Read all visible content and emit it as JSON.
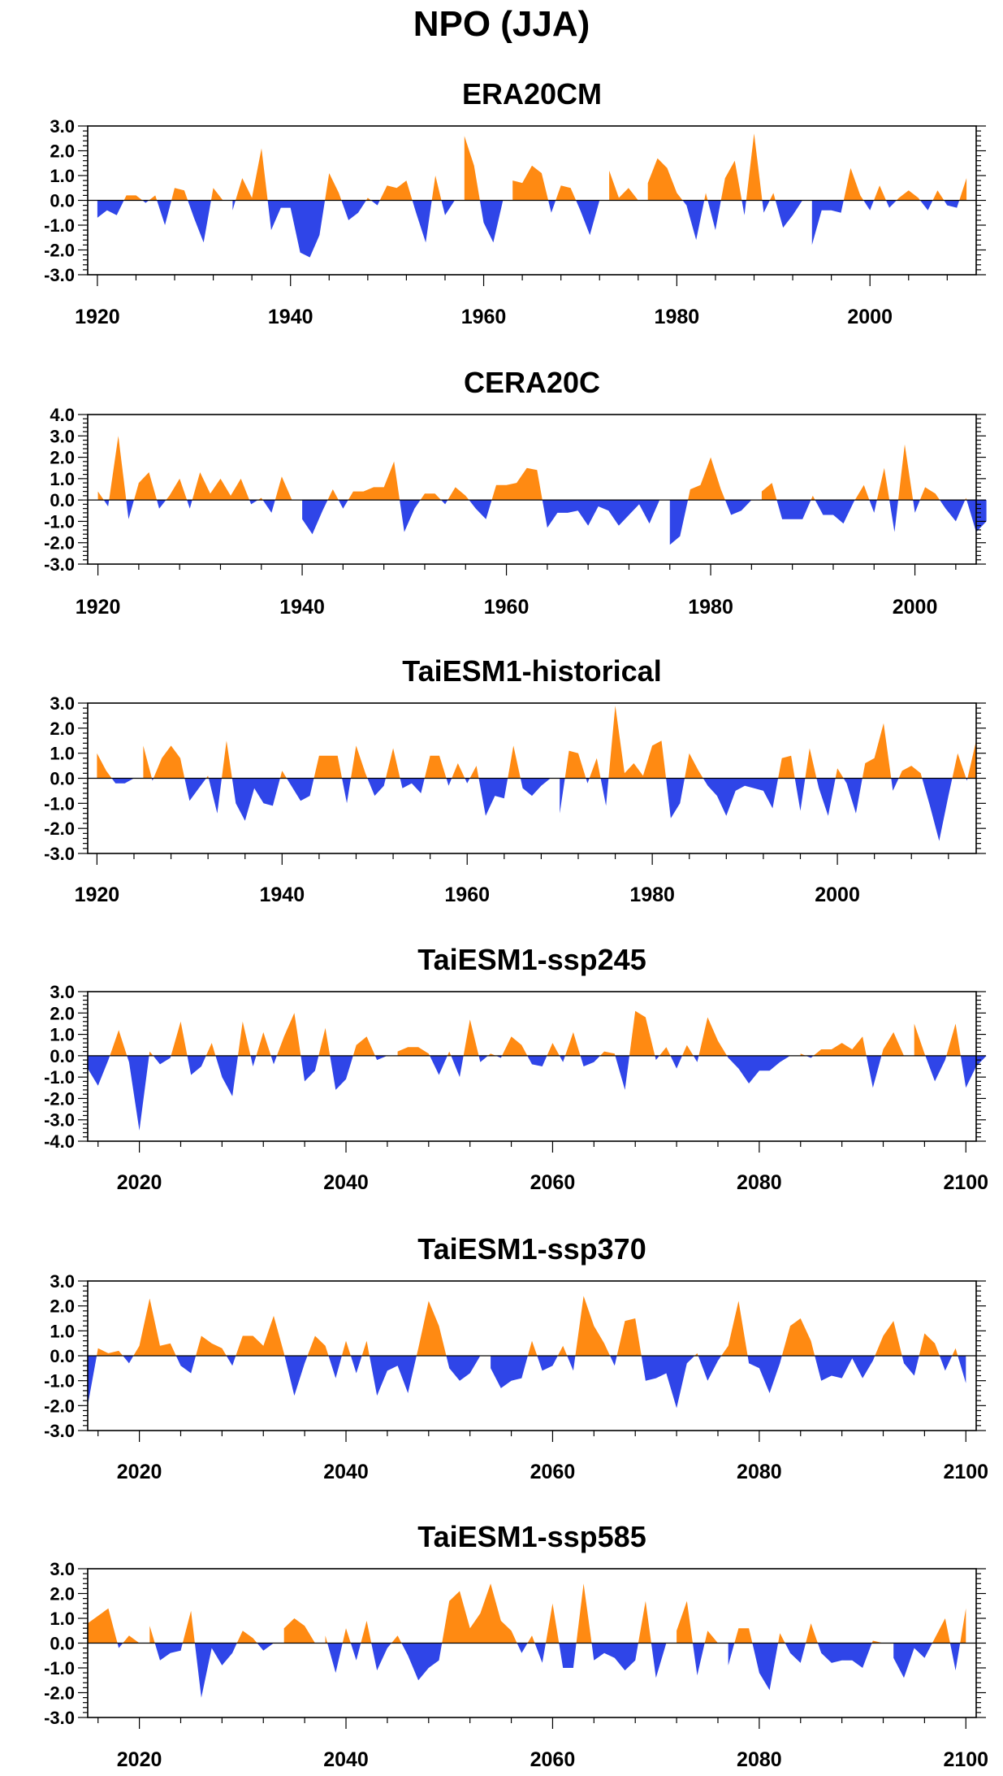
{
  "figure": {
    "title": "NPO (JJA)"
  },
  "colors": {
    "positive": "#ff8a12",
    "negative": "#2f45e8",
    "axis": "#000000"
  },
  "chart_data": [
    {
      "type": "area",
      "title": "ERA20CM",
      "x_start": 1920,
      "xlim": [
        1919,
        2011
      ],
      "ylim": [
        -3.0,
        3.0
      ],
      "yticks": [
        3.0,
        2.0,
        1.0,
        0.0,
        -1.0,
        -2.0,
        -3.0
      ],
      "ytick_labels": [
        "3.0",
        "2.0",
        "1.0",
        "0.0",
        "-1.0",
        "-2.0",
        "-3.0"
      ],
      "xticks": [
        1920,
        1940,
        1960,
        1980,
        2000
      ],
      "xtick_labels": [
        "1920",
        "1940",
        "1960",
        "1980",
        "2000"
      ],
      "values": [
        -0.7,
        -0.4,
        -0.6,
        0.2,
        0.2,
        -0.1,
        0.2,
        -1.0,
        0.5,
        0.4,
        -0.7,
        -1.7,
        0.5,
        0.0,
        -0.4,
        0.9,
        0.1,
        2.1,
        -1.2,
        -0.3,
        -0.3,
        -2.1,
        -2.3,
        -1.4,
        1.1,
        0.3,
        -0.8,
        -0.5,
        0.1,
        -0.2,
        0.6,
        0.5,
        0.8,
        -0.5,
        -1.7,
        1.0,
        -0.6,
        0.0,
        2.6,
        1.4,
        -0.9,
        -1.7,
        0.0,
        0.8,
        0.7,
        1.4,
        1.1,
        -0.5,
        0.6,
        0.5,
        -0.4,
        -1.4,
        0.0,
        1.2,
        0.1,
        0.5,
        0.0,
        0.7,
        1.7,
        1.3,
        0.3,
        -0.2,
        -1.6,
        0.3,
        -1.2,
        0.9,
        1.6,
        -0.6,
        2.7,
        -0.5,
        0.3,
        -1.1,
        -0.6,
        0.0,
        -1.8,
        -0.4,
        -0.4,
        -0.5,
        1.3,
        0.2,
        -0.4,
        0.6,
        -0.3,
        0.1,
        0.4,
        0.1,
        -0.4,
        0.4,
        -0.2,
        -0.3,
        0.9
      ]
    },
    {
      "type": "area",
      "title": "CERA20C",
      "x_start": 1920,
      "xlim": [
        1919,
        2006
      ],
      "ylim": [
        -3.0,
        4.0
      ],
      "yticks": [
        4.0,
        3.0,
        2.0,
        1.0,
        0.0,
        -1.0,
        -2.0,
        -3.0
      ],
      "ytick_labels": [
        "4.0",
        "3.0",
        "2.0",
        "1.0",
        "0.0",
        "-1.0",
        "-2.0",
        "-3.0"
      ],
      "xticks": [
        1920,
        1940,
        1960,
        1980,
        2000
      ],
      "xtick_labels": [
        "1920",
        "1940",
        "1960",
        "1980",
        "2000"
      ],
      "values": [
        0.4,
        -0.3,
        3.0,
        -0.9,
        0.8,
        1.3,
        -0.4,
        0.2,
        1.0,
        -0.4,
        1.3,
        0.3,
        1.0,
        0.2,
        1.0,
        -0.2,
        0.1,
        -0.6,
        1.1,
        0.0,
        -0.9,
        -1.6,
        -0.5,
        0.5,
        -0.4,
        0.4,
        0.4,
        0.6,
        0.6,
        1.8,
        -1.5,
        -0.4,
        0.3,
        0.3,
        -0.2,
        0.6,
        0.2,
        -0.4,
        -0.9,
        0.7,
        0.7,
        0.8,
        1.5,
        1.4,
        -1.3,
        -0.6,
        -0.6,
        -0.5,
        -1.2,
        -0.3,
        -0.5,
        -1.2,
        -0.7,
        -0.2,
        -1.1,
        0.0,
        -2.1,
        -1.7,
        0.5,
        0.7,
        2.0,
        0.5,
        -0.7,
        -0.5,
        0.0,
        0.4,
        0.8,
        -0.9,
        -0.9,
        -0.9,
        0.2,
        -0.7,
        -0.7,
        -1.1,
        -0.1,
        0.7,
        -0.6,
        1.5,
        -1.5,
        2.6,
        -0.6,
        0.6,
        0.3,
        -0.4,
        -1.0,
        0.1,
        -1.5,
        -1.0
      ]
    },
    {
      "type": "area",
      "title": "TaiESM1-historical",
      "x_start": 1920,
      "xlim": [
        1919,
        2015
      ],
      "ylim": [
        -3.0,
        3.0
      ],
      "yticks": [
        3.0,
        2.0,
        1.0,
        0.0,
        -1.0,
        -2.0,
        -3.0
      ],
      "ytick_labels": [
        "3.0",
        "2.0",
        "1.0",
        "0.0",
        "-1.0",
        "-2.0",
        "-3.0"
      ],
      "xticks": [
        1920,
        1940,
        1960,
        1980,
        2000
      ],
      "xtick_labels": [
        "1920",
        "1940",
        "1960",
        "1980",
        "2000"
      ],
      "values": [
        1.0,
        0.3,
        -0.2,
        -0.2,
        0.0,
        1.3,
        -0.1,
        0.8,
        1.3,
        0.8,
        -0.9,
        -0.4,
        0.1,
        -1.4,
        1.5,
        -1.0,
        -1.7,
        -0.4,
        -1.0,
        -1.1,
        0.3,
        -0.3,
        -0.9,
        -0.7,
        0.9,
        0.9,
        0.9,
        -1.0,
        1.3,
        0.2,
        -0.7,
        -0.3,
        1.2,
        -0.4,
        -0.2,
        -0.6,
        0.9,
        0.9,
        -0.3,
        0.6,
        -0.2,
        0.5,
        -1.5,
        -0.7,
        -0.8,
        1.3,
        -0.4,
        -0.7,
        -0.3,
        0.0,
        -1.4,
        1.1,
        1.0,
        -0.2,
        0.8,
        -1.1,
        2.9,
        0.2,
        0.6,
        0.1,
        1.3,
        1.5,
        -1.6,
        -1.0,
        1.0,
        0.3,
        -0.3,
        -0.7,
        -1.5,
        -0.5,
        -0.3,
        -0.4,
        -0.5,
        -1.2,
        0.8,
        0.9,
        -1.3,
        1.2,
        -0.4,
        -1.5,
        0.4,
        -0.2,
        -1.4,
        0.6,
        0.8,
        2.2,
        -0.5,
        0.3,
        0.5,
        0.2,
        -1.1,
        -2.5,
        -0.7,
        1.0,
        -0.1,
        1.5
      ]
    },
    {
      "type": "area",
      "title": "TaiESM1-ssp245",
      "x_start": 2015,
      "xlim": [
        2015,
        2101
      ],
      "ylim": [
        -4.0,
        3.0
      ],
      "yticks": [
        3.0,
        2.0,
        1.0,
        0.0,
        -1.0,
        -2.0,
        -3.0,
        -4.0
      ],
      "ytick_labels": [
        "3.0",
        "2.0",
        "1.0",
        "0.0",
        "-1.0",
        "-2.0",
        "-3.0",
        "-4.0"
      ],
      "xticks": [
        2020,
        2040,
        2060,
        2080,
        2100
      ],
      "xtick_labels": [
        "2020",
        "2040",
        "2060",
        "2080",
        "2100"
      ],
      "values": [
        -0.6,
        -1.4,
        -0.2,
        1.2,
        -0.3,
        -3.5,
        0.2,
        -0.4,
        -0.1,
        1.6,
        -0.9,
        -0.5,
        0.6,
        -1.0,
        -1.9,
        1.6,
        -0.5,
        1.1,
        -0.4,
        0.9,
        2.0,
        -1.2,
        -0.7,
        1.3,
        -1.6,
        -1.1,
        0.5,
        0.9,
        -0.2,
        0.0,
        0.2,
        0.4,
        0.4,
        0.1,
        -0.9,
        0.2,
        -1.0,
        1.7,
        -0.3,
        0.1,
        -0.1,
        0.9,
        0.5,
        -0.4,
        -0.5,
        0.6,
        -0.3,
        1.1,
        -0.5,
        -0.3,
        0.2,
        0.1,
        -1.6,
        2.1,
        1.8,
        -0.2,
        0.4,
        -0.6,
        0.5,
        -0.3,
        1.8,
        0.7,
        -0.1,
        -0.6,
        -1.3,
        -0.7,
        -0.7,
        -0.3,
        0.0,
        0.1,
        -0.1,
        0.3,
        0.3,
        0.6,
        0.3,
        0.9,
        -1.5,
        0.3,
        1.1,
        0.0,
        1.5,
        0.1,
        -1.2,
        -0.2,
        1.5,
        -1.5,
        -0.5,
        0.0
      ]
    },
    {
      "type": "area",
      "title": "TaiESM1-ssp370",
      "x_start": 2015,
      "xlim": [
        2015,
        2101
      ],
      "ylim": [
        -3.0,
        3.0
      ],
      "yticks": [
        3.0,
        2.0,
        1.0,
        0.0,
        -1.0,
        -2.0,
        -3.0
      ],
      "ytick_labels": [
        "3.0",
        "2.0",
        "1.0",
        "0.0",
        "-1.0",
        "-2.0",
        "-3.0"
      ],
      "xticks": [
        2020,
        2040,
        2060,
        2080,
        2100
      ],
      "xtick_labels": [
        "2020",
        "2040",
        "2060",
        "2080",
        "2100"
      ],
      "values": [
        -2.0,
        0.3,
        0.1,
        0.2,
        -0.3,
        0.4,
        2.3,
        0.4,
        0.5,
        -0.4,
        -0.7,
        0.8,
        0.5,
        0.3,
        -0.4,
        0.8,
        0.8,
        0.4,
        1.6,
        0.1,
        -1.6,
        -0.3,
        0.8,
        0.4,
        -0.9,
        0.6,
        -0.7,
        0.6,
        -1.6,
        -0.6,
        -0.4,
        -1.5,
        0.3,
        2.2,
        1.2,
        -0.5,
        -1.0,
        -0.7,
        0.0,
        -0.5,
        -1.3,
        -1.0,
        -0.9,
        0.6,
        -0.6,
        -0.4,
        0.4,
        -0.6,
        2.4,
        1.2,
        0.5,
        -0.4,
        1.4,
        1.5,
        -1.0,
        -0.9,
        -0.7,
        -2.1,
        -0.3,
        0.1,
        -1.0,
        -0.2,
        0.4,
        2.2,
        -0.3,
        -0.5,
        -1.5,
        -0.3,
        1.2,
        1.5,
        0.6,
        -1.0,
        -0.8,
        -0.9,
        -0.1,
        -0.9,
        -0.2,
        0.8,
        1.4,
        -0.3,
        -0.8,
        0.9,
        0.5,
        -0.6,
        0.3,
        -1.1
      ]
    },
    {
      "type": "area",
      "title": "TaiESM1-ssp585",
      "x_start": 2015,
      "xlim": [
        2015,
        2101
      ],
      "ylim": [
        -3.0,
        3.0
      ],
      "yticks": [
        3.0,
        2.0,
        1.0,
        0.0,
        -1.0,
        -2.0,
        -3.0
      ],
      "ytick_labels": [
        "3.0",
        "2.0",
        "1.0",
        "0.0",
        "-1.0",
        "-2.0",
        "-3.0"
      ],
      "xticks": [
        2020,
        2040,
        2060,
        2080,
        2100
      ],
      "xtick_labels": [
        "2020",
        "2040",
        "2060",
        "2080",
        "2100"
      ],
      "values": [
        0.8,
        1.1,
        1.4,
        -0.2,
        0.3,
        0.0,
        0.7,
        -0.7,
        -0.4,
        -0.3,
        1.3,
        -2.2,
        -0.2,
        -0.9,
        -0.4,
        0.5,
        0.2,
        -0.3,
        0.0,
        0.6,
        1.0,
        0.7,
        0.0,
        0.3,
        -1.2,
        0.6,
        -0.7,
        0.9,
        -1.1,
        -0.2,
        0.3,
        -0.5,
        -1.5,
        -1.0,
        -0.7,
        1.7,
        2.1,
        0.6,
        1.2,
        2.4,
        0.9,
        0.5,
        -0.4,
        0.3,
        -0.8,
        1.6,
        -1.0,
        -1.0,
        2.4,
        -0.7,
        -0.4,
        -0.6,
        -1.1,
        -0.7,
        1.7,
        -1.4,
        0.0,
        0.5,
        1.7,
        -1.3,
        0.5,
        0.0,
        -0.9,
        0.6,
        0.6,
        -1.2,
        -1.9,
        0.4,
        -0.4,
        -0.8,
        0.8,
        -0.4,
        -0.8,
        -0.7,
        -0.7,
        -1.0,
        0.1,
        0.0,
        -0.6,
        -1.4,
        -0.2,
        -0.6,
        0.2,
        1.0,
        -1.1,
        1.4
      ]
    }
  ]
}
